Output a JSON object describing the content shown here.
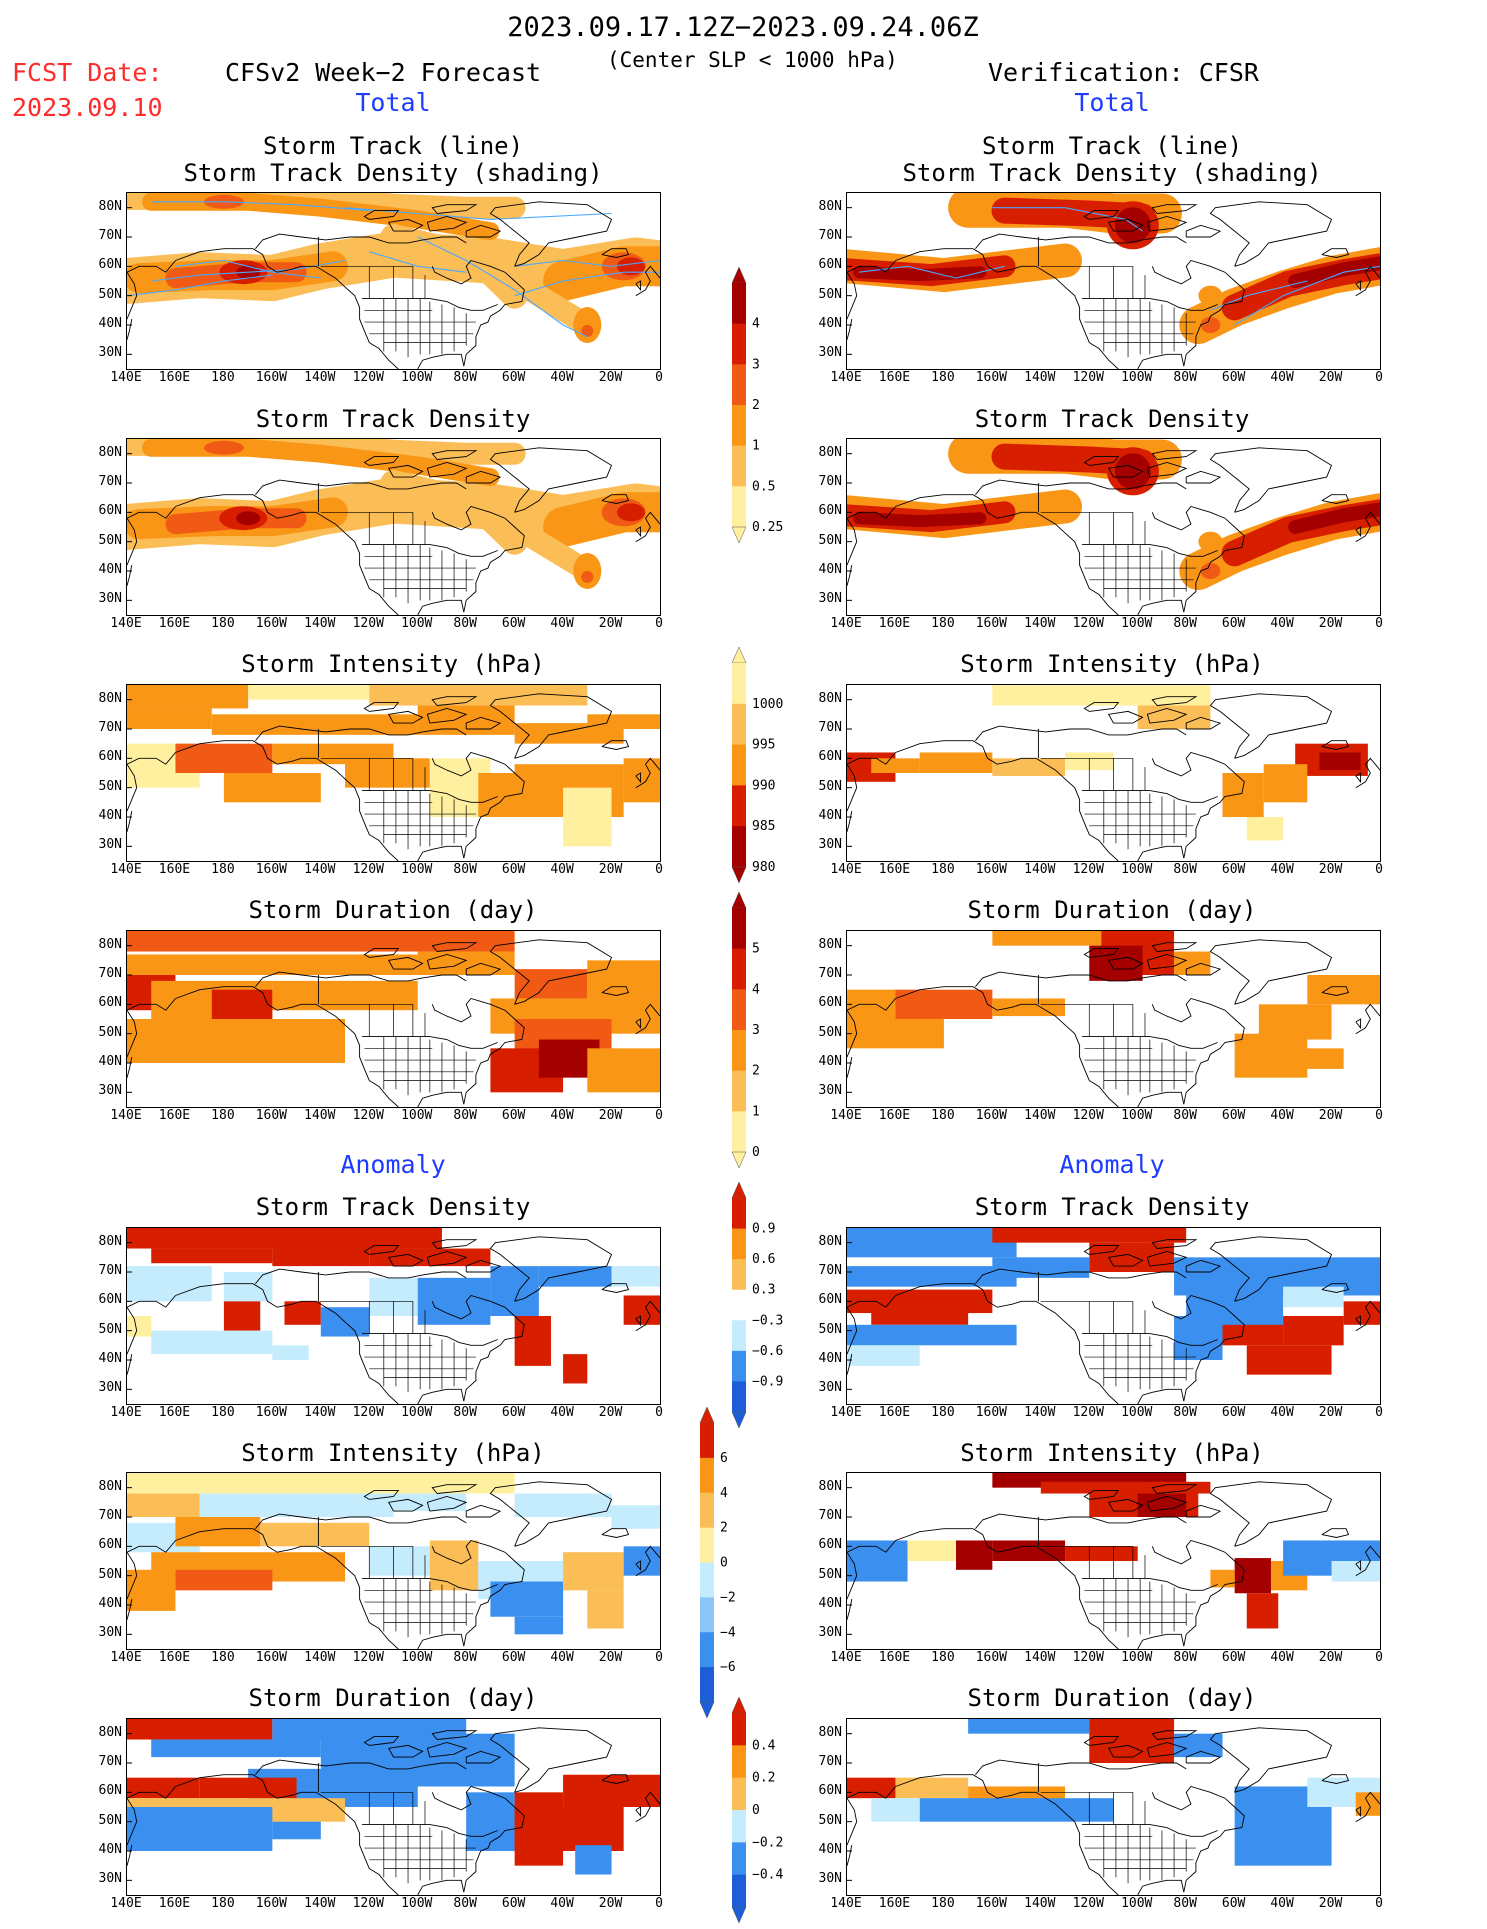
{
  "header": {
    "date_range": "2023.09.17.12Z−2023.09.24.06Z",
    "fcst_label": "FCST Date:",
    "fcst_date": "2023.09.10",
    "model_label": "CFSv2 Week−2 Forecast",
    "threshold": "(Center SLP < 1000 hPa)",
    "verification": "Verification: CFSR",
    "total_left": "Total",
    "total_right": "Total",
    "anomaly_left": "Anomaly",
    "anomaly_right": "Anomaly"
  },
  "panel_titles": {
    "track_line": "Storm Track (line)",
    "track_shading": "Storm Track Density (shading)",
    "track_density": "Storm Track Density",
    "intensity": "Storm Intensity (hPa)",
    "duration": "Storm Duration (day)"
  },
  "axes": {
    "lat_labels": [
      "80N",
      "70N",
      "60N",
      "50N",
      "40N",
      "30N"
    ],
    "lon_labels": [
      "140E",
      "160E",
      "180",
      "160W",
      "140W",
      "120W",
      "100W",
      "80W",
      "60W",
      "40W",
      "20W",
      "0"
    ]
  },
  "colorbars": {
    "density_total": [
      "4",
      "3",
      "2",
      "1",
      "0.5",
      "0.25"
    ],
    "intensity_total": [
      "1000",
      "995",
      "990",
      "985",
      "980"
    ],
    "duration_total": [
      "5",
      "4",
      "3",
      "2",
      "1",
      "0"
    ],
    "density_anom": [
      "0.9",
      "0.6",
      "0.3",
      "−0.3",
      "−0.6",
      "−0.9"
    ],
    "intensity_anom": [
      "6",
      "4",
      "2",
      "0",
      "−2",
      "−4",
      "−6"
    ],
    "duration_anom": [
      "0.4",
      "0.2",
      "0",
      "−0.2",
      "−0.4"
    ]
  },
  "colors": {
    "deep_red": "#a50000",
    "red": "#d71f00",
    "red_orange": "#f05a14",
    "orange": "#fa9616",
    "light_orange": "#fbbd55",
    "yellow": "#fff0a0",
    "light_blue": "#c4ecfd",
    "blue": "#3a8fef",
    "deep_blue": "#1c5ed8",
    "track_line": "#4aa8ff"
  }
}
